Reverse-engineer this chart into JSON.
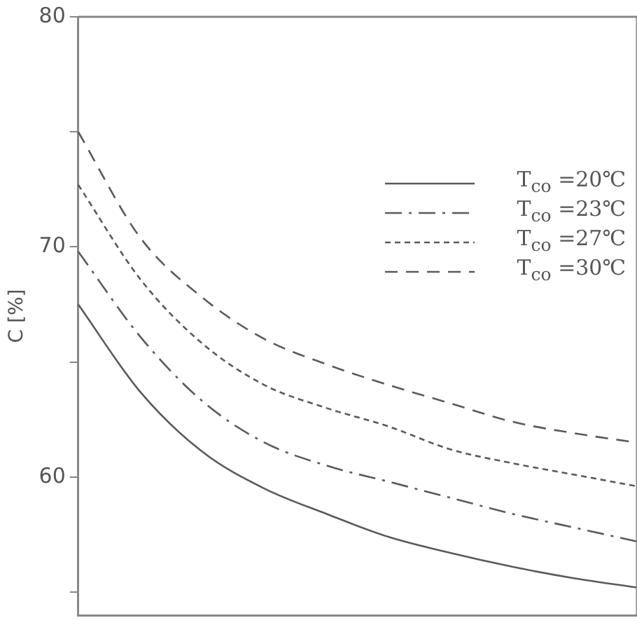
{
  "chart_data": {
    "type": "line",
    "ylabel": "C [%]",
    "categories": [
      null,
      null,
      null,
      null,
      null,
      null,
      null,
      null,
      null,
      null
    ],
    "ylim": [
      54,
      80
    ],
    "yticks": [
      {
        "value": 55,
        "label": null
      },
      60,
      {
        "value": 65,
        "label": null
      },
      70,
      {
        "value": 75,
        "label": null
      },
      80
    ],
    "grid": false,
    "legend": "top right",
    "marker": "none",
    "tick_labels": "y",
    "series": [
      {
        "name": "T$_{co}$ =20℃",
        "color": "#5a5a5a",
        "line_style": "solid",
        "values": [
          67.5,
          63.7,
          61.1,
          59.5,
          58.4,
          57.4,
          56.7,
          56.1,
          55.6,
          55.2
        ]
      },
      {
        "name": "T$_{co}$ =23℃",
        "color": "#5a5a5a",
        "line_style": "dashdot",
        "values": [
          69.8,
          66.1,
          63.3,
          61.5,
          60.5,
          59.8,
          59.1,
          58.4,
          57.8,
          57.2
        ]
      },
      {
        "name": "T$_{co}$ =27℃",
        "color": "#5a5a5a",
        "line_style": "dotted",
        "values": [
          72.7,
          68.6,
          65.8,
          64.0,
          63.0,
          62.2,
          61.2,
          60.6,
          60.1,
          59.6
        ]
      },
      {
        "name": "T$_{co}$ =30℃",
        "color": "#5a5a5a",
        "line_style": "dashed",
        "values": [
          75,
          70.4,
          67.8,
          66.0,
          64.9,
          64.0,
          63.2,
          62.4,
          61.9,
          61.5
        ]
      }
    ]
  }
}
